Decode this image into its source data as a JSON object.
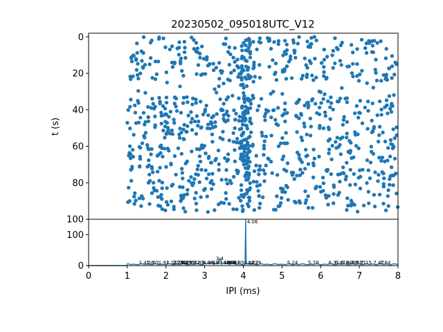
{
  "chart_data": [
    {
      "type": "scatter",
      "title": "20230502_095018UTC_V12",
      "xlabel": "",
      "ylabel": "t (s)",
      "xlim": [
        0,
        8
      ],
      "ylim": [
        100,
        -2
      ],
      "y_inverted": true,
      "yticks": [
        0,
        20,
        40,
        60,
        80,
        100
      ],
      "color": "#1f77b4",
      "marker_radius_hint": "small",
      "point_generation": {
        "count": 1100,
        "x_range": [
          1.0,
          8.0
        ],
        "y_range": [
          0,
          96
        ],
        "dense_column_x": 4.06,
        "seed": 12
      }
    },
    {
      "type": "line",
      "title": "",
      "xlabel": "IPI (ms)",
      "ylabel": "",
      "xlim": [
        0,
        8
      ],
      "ylim": [
        0,
        150
      ],
      "xticks": [
        0,
        1,
        2,
        3,
        4,
        5,
        6,
        7,
        8
      ],
      "yticks": [
        0,
        100
      ],
      "color": "#1f77b4",
      "peak": {
        "x": 4.06,
        "y": 150,
        "label": "4.06"
      },
      "secondary_peak": {
        "x": 3.4,
        "y": 22,
        "label": "3.4"
      },
      "peak_labels": [
        "1.41",
        "1.6",
        "1.65",
        "1.91",
        "2.11",
        "2.28",
        "2.29",
        "2.35",
        "2.41",
        "2.49",
        "2.59",
        "2.63",
        "2.82",
        "2.9",
        "3.06",
        "3.19",
        "3.3",
        "3.48",
        "3.59",
        "3.66",
        "3.7",
        "3.73",
        "3.85",
        "4.12",
        "4.22",
        "4.29",
        "5.24",
        "5.78",
        "6.31",
        "6.47",
        "6.64",
        "6.78",
        "6.91",
        "7.01",
        "7.15",
        "7.47",
        "7.64"
      ],
      "peak_label_positions": [
        1.41,
        1.6,
        1.65,
        1.91,
        2.11,
        2.28,
        2.29,
        2.35,
        2.41,
        2.49,
        2.59,
        2.63,
        2.82,
        2.9,
        3.06,
        3.19,
        3.3,
        3.48,
        3.59,
        3.66,
        3.7,
        3.73,
        3.85,
        4.12,
        4.22,
        4.29,
        5.24,
        5.78,
        6.31,
        6.47,
        6.64,
        6.78,
        6.91,
        7.01,
        7.15,
        7.47,
        7.64
      ]
    }
  ]
}
